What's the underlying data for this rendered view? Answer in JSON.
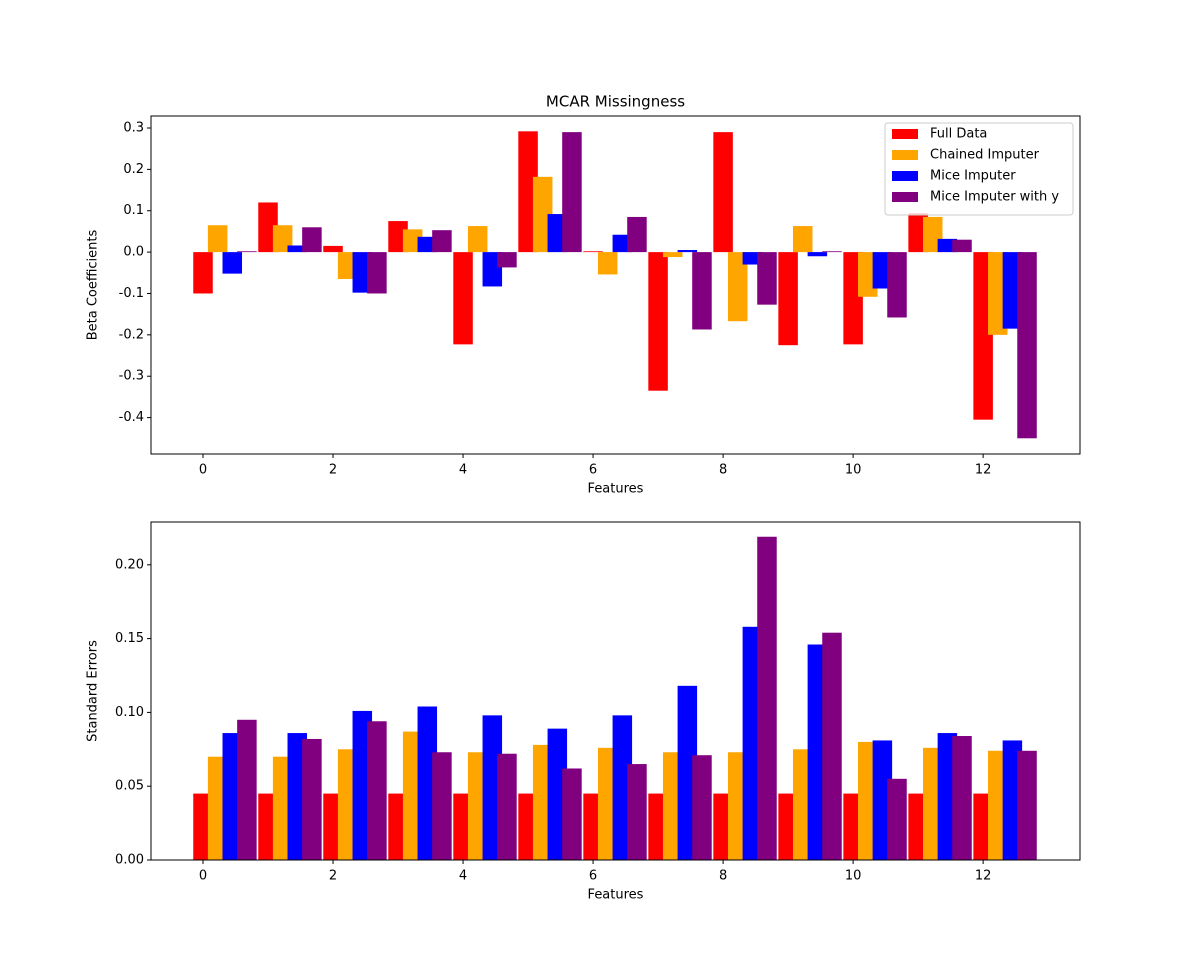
{
  "chart_data": [
    {
      "type": "bar",
      "title": "MCAR Missingness",
      "xlabel": "Features",
      "ylabel": "Beta Coefficients",
      "x": [
        0,
        1,
        2,
        3,
        4,
        5,
        6,
        7,
        8,
        9,
        10,
        11,
        12
      ],
      "xlim": [
        -0.8,
        13.49
      ],
      "xticks": [
        0,
        2,
        4,
        6,
        8,
        10,
        12
      ],
      "ylim": [
        -0.488,
        0.329
      ],
      "yticks": [
        -0.4,
        -0.3,
        -0.2,
        -0.1,
        {
          "value": 0,
          "label": "0.0"
        },
        0.1,
        0.2,
        0.3
      ],
      "legend": "upper right",
      "series": [
        {
          "name": "Full Data",
          "color": "#ff0000",
          "values": [
            -0.1,
            0.12,
            0.015,
            0.075,
            -0.223,
            0.292,
            0.002,
            -0.335,
            0.29,
            -0.225,
            -0.223,
            0.094,
            -0.405
          ]
        },
        {
          "name": "Chained Imputer",
          "color": "#ffa500",
          "values": [
            0.065,
            0.065,
            -0.065,
            0.055,
            0.063,
            0.182,
            -0.054,
            -0.012,
            -0.167,
            0.063,
            -0.108,
            0.085,
            -0.2
          ]
        },
        {
          "name": "Mice Imputer",
          "color": "#0000ff",
          "values": [
            -0.052,
            0.016,
            -0.098,
            0.037,
            -0.083,
            0.092,
            0.042,
            0.005,
            -0.03,
            -0.01,
            -0.088,
            0.032,
            -0.185
          ]
        },
        {
          "name": "Mice Imputer with y",
          "color": "#800080",
          "values": [
            0.002,
            0.06,
            -0.1,
            0.053,
            -0.037,
            0.29,
            0.085,
            -0.187,
            -0.127,
            0.002,
            -0.158,
            0.03,
            -0.45
          ]
        }
      ]
    },
    {
      "type": "bar",
      "xlabel": "Features",
      "ylabel": "Standard Errors",
      "x": [
        0,
        1,
        2,
        3,
        4,
        5,
        6,
        7,
        8,
        9,
        10,
        11,
        12
      ],
      "xlim": [
        -0.8,
        13.49
      ],
      "xticks": [
        0,
        2,
        4,
        6,
        8,
        10,
        12
      ],
      "ylim": [
        0,
        0.229
      ],
      "yticks": [
        {
          "value": 0,
          "label": "0.00"
        },
        {
          "value": 0.05,
          "label": "0.05"
        },
        {
          "value": 0.1,
          "label": "0.10"
        },
        {
          "value": 0.15,
          "label": "0.15"
        },
        {
          "value": 0.2,
          "label": "0.20"
        }
      ],
      "series": [
        {
          "color": "#ff0000",
          "values": [
            0.045,
            0.045,
            0.045,
            0.045,
            0.045,
            0.045,
            0.045,
            0.045,
            0.045,
            0.045,
            0.045,
            0.045,
            0.045
          ]
        },
        {
          "color": "#ffa500",
          "values": [
            0.07,
            0.07,
            0.075,
            0.087,
            0.073,
            0.078,
            0.076,
            0.073,
            0.073,
            0.075,
            0.08,
            0.076,
            0.074
          ]
        },
        {
          "color": "#0000ff",
          "values": [
            0.086,
            0.086,
            0.101,
            0.104,
            0.098,
            0.089,
            0.098,
            0.118,
            0.158,
            0.146,
            0.081,
            0.086,
            0.081
          ]
        },
        {
          "color": "#800080",
          "values": [
            0.095,
            0.082,
            0.094,
            0.073,
            0.072,
            0.062,
            0.065,
            0.071,
            0.219,
            0.154,
            0.055,
            0.084,
            0.074
          ]
        }
      ]
    }
  ]
}
